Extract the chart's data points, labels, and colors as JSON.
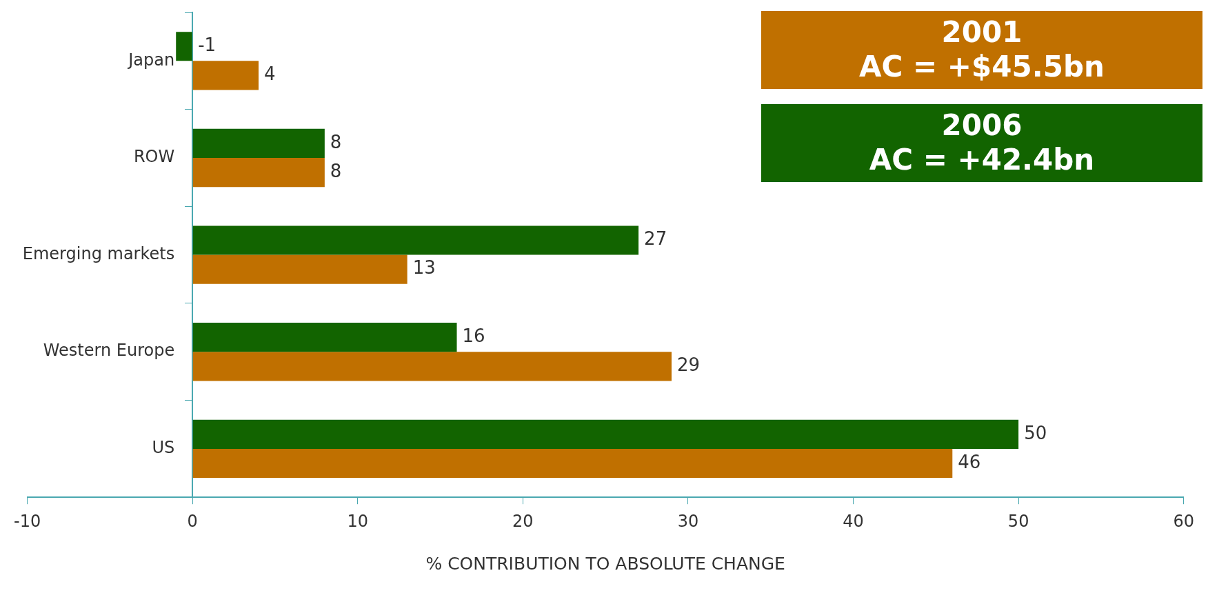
{
  "chart_data": {
    "type": "bar",
    "orientation": "horizontal",
    "categories": [
      "Japan",
      "ROW",
      "Emerging markets",
      "Western Europe",
      "US"
    ],
    "series": [
      {
        "name": "2001\nAC = +$45.5bn",
        "color": "#c07000",
        "values": [
          4,
          8,
          13,
          29,
          46
        ]
      },
      {
        "name": "2006\nAC = +42.4bn",
        "color": "#126400",
        "values": [
          -1,
          8,
          27,
          16,
          50
        ]
      }
    ],
    "xlabel": "% CONTRIBUTION TO ABSOLUTE CHANGE",
    "xlim": [
      -10,
      60
    ],
    "xticks": [
      -10,
      0,
      10,
      20,
      30,
      40,
      50,
      60
    ],
    "data_labels": true,
    "legend": "top right",
    "grid": false
  }
}
